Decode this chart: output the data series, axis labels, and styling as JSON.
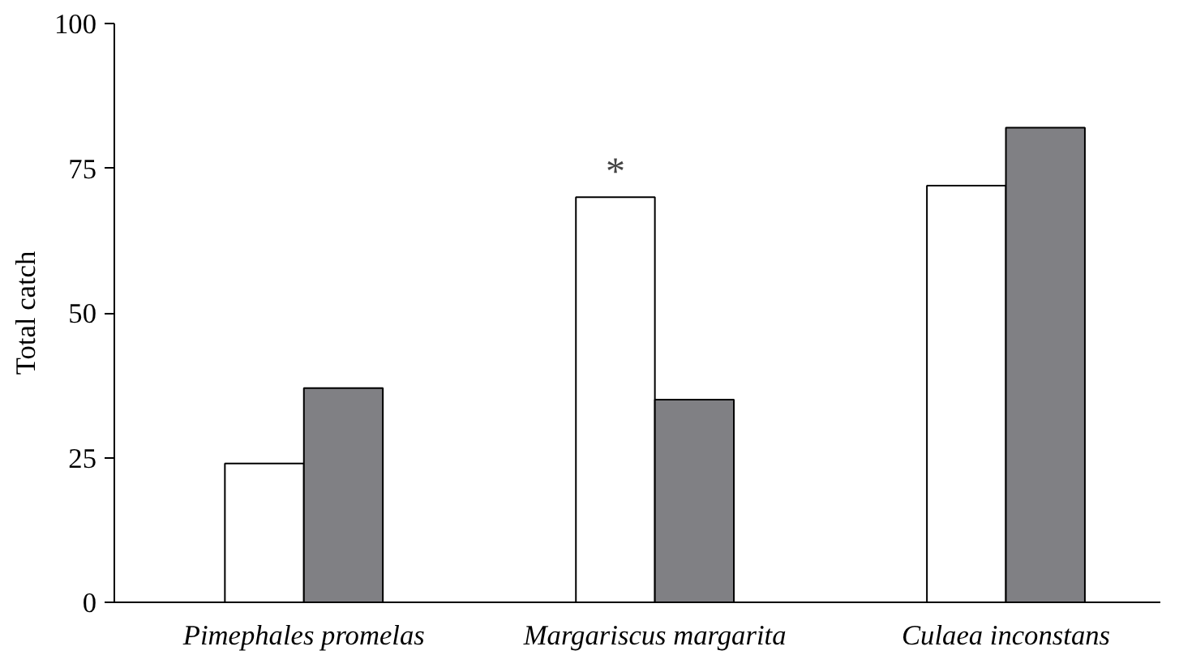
{
  "chart_data": {
    "type": "bar",
    "ylabel": "Total catch",
    "categories": [
      "Pimephales promelas",
      "Margariscus margarita",
      "Culaea inconstans"
    ],
    "series": [
      {
        "color": "#ffffff",
        "values": [
          24,
          70,
          72
        ]
      },
      {
        "color": "#808084",
        "values": [
          37,
          35,
          82
        ]
      }
    ],
    "ylim": [
      0,
      100
    ],
    "yticks": [
      0,
      25,
      50,
      75,
      100
    ],
    "grid": false,
    "annotations": [
      {
        "text": "*",
        "x": "Margariscus margarita",
        "y": 70
      }
    ]
  }
}
